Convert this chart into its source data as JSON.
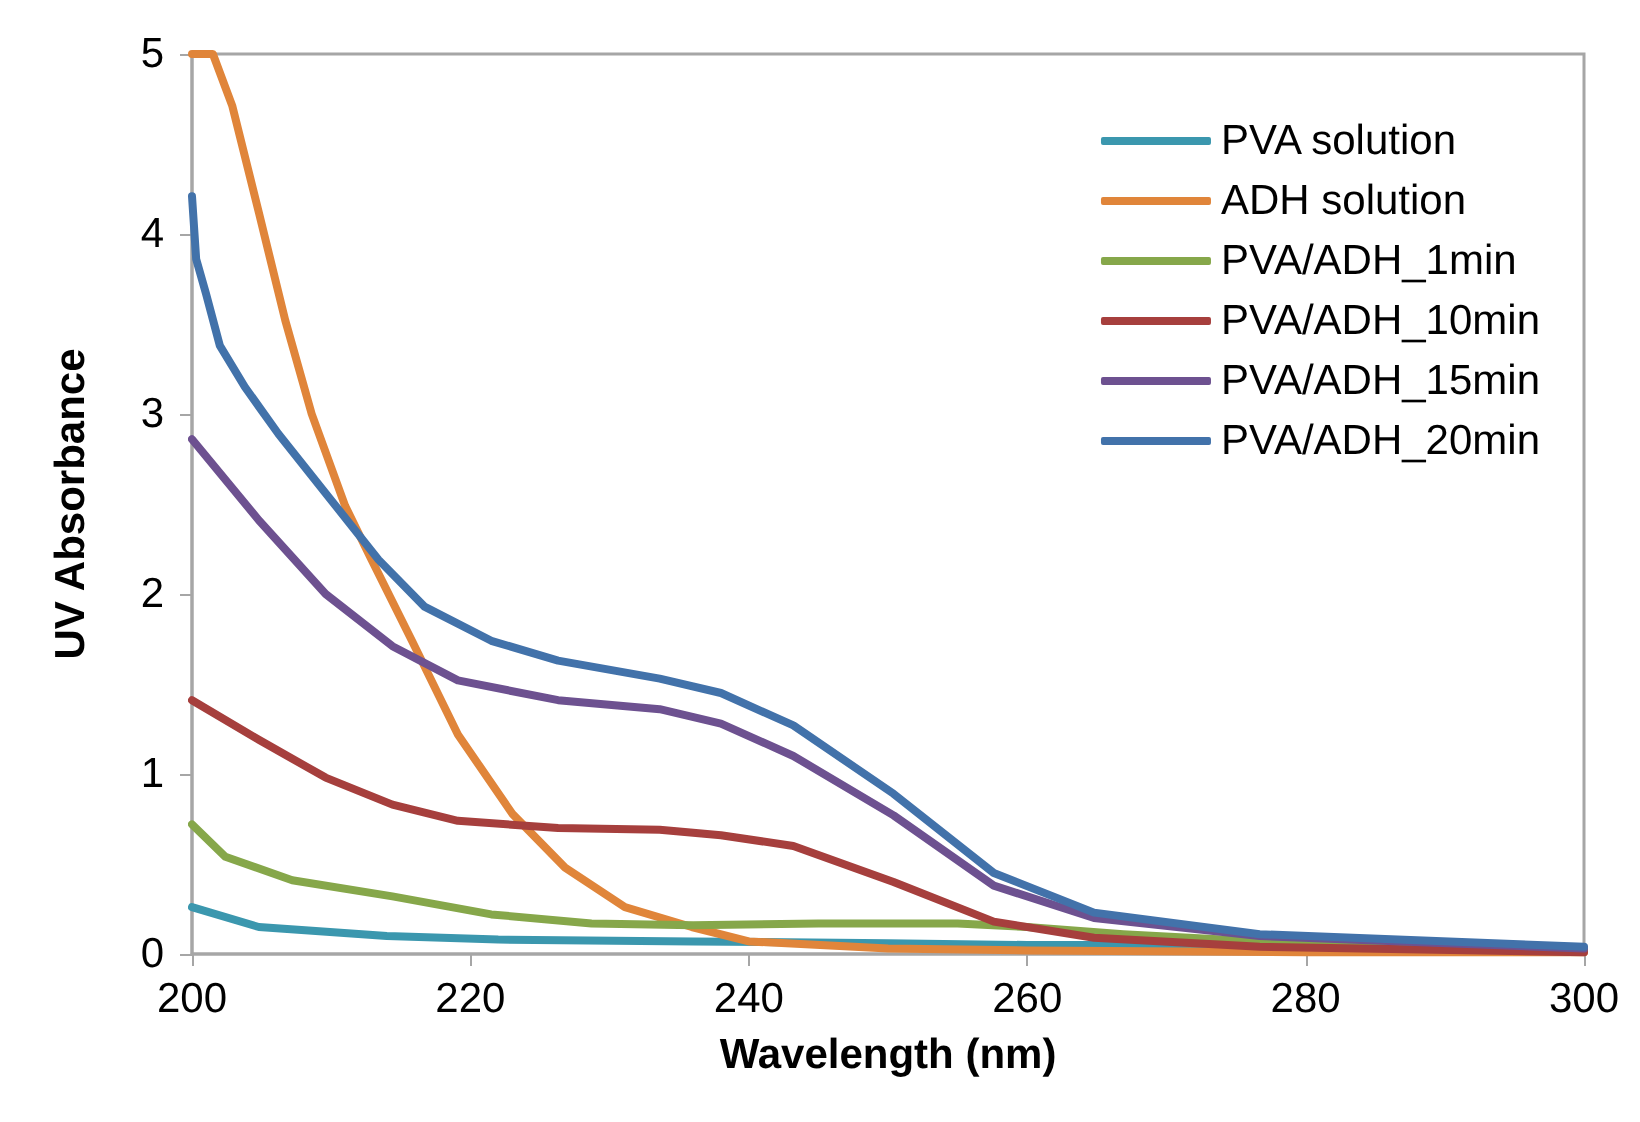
{
  "chart_data": {
    "type": "line",
    "xlabel": "Wavelength (nm)",
    "ylabel": "UV Absorbance",
    "xlim": [
      200,
      300
    ],
    "xticks": [
      200,
      220,
      240,
      260,
      280,
      300
    ],
    "ylim": [
      0,
      5
    ],
    "yticks": [
      0,
      1,
      2,
      3,
      4,
      5
    ],
    "grid": false,
    "legend": "top right",
    "marker": "none",
    "line_style": "solid",
    "series": [
      {
        "name": "PVA solution",
        "color": "#3b97ae",
        "x": [
          200,
          204.8,
          214,
          222,
          236,
          250,
          260,
          270,
          280,
          300
        ],
        "values": [
          0.26,
          0.15,
          0.1,
          0.08,
          0.07,
          0.06,
          0.05,
          0.05,
          0.04,
          0.03
        ]
      },
      {
        "name": "ADH solution",
        "color": "#e0853a",
        "x": [
          200,
          201.5,
          202.9,
          204.8,
          206.7,
          208.6,
          211,
          212.9,
          215.8,
          219.1,
          223,
          226.8,
          231.1,
          235.9,
          240,
          250,
          260,
          280,
          300
        ],
        "values": [
          5,
          5,
          4.71,
          4.12,
          3.52,
          3,
          2.49,
          2.19,
          1.74,
          1.22,
          0.78,
          0.48,
          0.26,
          0.15,
          0.07,
          0.03,
          0.02,
          0.01,
          0.01
        ]
      },
      {
        "name": "PVA/ADH_1min",
        "color": "#86a74a",
        "x": [
          200,
          202.4,
          207.2,
          214.4,
          221.5,
          228.7,
          236,
          245,
          255,
          260,
          266.9,
          276.7,
          300
        ],
        "values": [
          0.72,
          0.54,
          0.41,
          0.32,
          0.22,
          0.17,
          0.16,
          0.17,
          0.17,
          0.15,
          0.11,
          0.07,
          0.03
        ]
      },
      {
        "name": "PVA/ADH_10min",
        "color": "#a63f3d",
        "x": [
          200,
          204.8,
          209.6,
          214.4,
          219.1,
          226.3,
          233.6,
          238,
          243.2,
          250.4,
          257.6,
          264.8,
          276.7,
          300
        ],
        "values": [
          1.41,
          1.19,
          0.98,
          0.83,
          0.74,
          0.7,
          0.69,
          0.66,
          0.6,
          0.4,
          0.18,
          0.09,
          0.04,
          0.01
        ]
      },
      {
        "name": "PVA/ADH_15min",
        "color": "#6d5190",
        "x": [
          200,
          204.8,
          209.6,
          214.4,
          219.1,
          226.3,
          233.6,
          238,
          243.2,
          250.4,
          257.6,
          264.8,
          276.7,
          300
        ],
        "values": [
          2.86,
          2.41,
          2,
          1.71,
          1.52,
          1.41,
          1.36,
          1.28,
          1.1,
          0.77,
          0.38,
          0.2,
          0.1,
          0.03
        ]
      },
      {
        "name": "PVA/ADH_20min",
        "color": "#4272aa",
        "x": [
          200,
          200.3,
          201,
          202,
          203.8,
          206.2,
          209.6,
          213.4,
          216.7,
          221.5,
          226.3,
          233.6,
          238,
          243.2,
          250.4,
          257.6,
          264.8,
          276.7,
          300
        ],
        "values": [
          4.21,
          3.86,
          3.67,
          3.38,
          3.15,
          2.89,
          2.56,
          2.19,
          1.93,
          1.74,
          1.63,
          1.53,
          1.45,
          1.27,
          0.89,
          0.45,
          0.23,
          0.11,
          0.04
        ]
      }
    ]
  }
}
